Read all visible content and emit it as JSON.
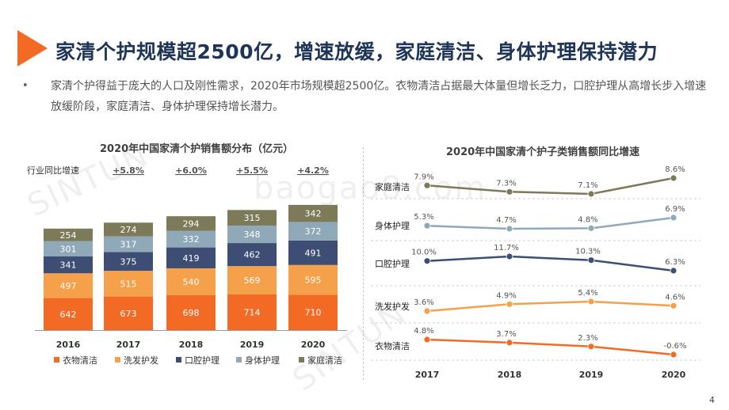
{
  "page": {
    "title": "家清个护规模超2500亿，增速放缓，家庭清洁、身体护理保持潜力",
    "bullet": "•",
    "summary": "家清个护得益于庞大的人口及刚性需求，2020年市场规模超2500亿。衣物清洁占据最大体量但增长乏力，口腔护理从高增长步入增速放缓阶段，家庭清洁、身体护理保持增长潜力。",
    "page_number": "4",
    "watermarks": [
      "SINTUN",
      "baogao8.com",
      "SINTUN"
    ]
  },
  "chart_data": [
    {
      "type": "bar",
      "stacked": true,
      "title": "2020年中国家清个护销售额分布（亿元）",
      "categories": [
        "2016",
        "2017",
        "2018",
        "2019",
        "2020"
      ],
      "growth_row_label": "行业同比增速",
      "growth": [
        "",
        "+5.8%",
        "+6.0%",
        "+5.5%",
        "+4.2%"
      ],
      "series": [
        {
          "name": "衣物清洁",
          "color": "#f26a23",
          "values": [
            642,
            673,
            698,
            714,
            710
          ]
        },
        {
          "name": "洗发护发",
          "color": "#f5a04a",
          "values": [
            497,
            515,
            540,
            569,
            595
          ]
        },
        {
          "name": "口腔护理",
          "color": "#3d4d73",
          "values": [
            341,
            375,
            419,
            462,
            491
          ]
        },
        {
          "name": "身体护理",
          "color": "#8fa9b8",
          "values": [
            301,
            317,
            332,
            348,
            372
          ]
        },
        {
          "name": "家庭清洁",
          "color": "#7c7a58",
          "values": [
            254,
            274,
            294,
            315,
            342
          ]
        }
      ]
    },
    {
      "type": "line",
      "title": "2020年中国家清个护子类销售额同比增速",
      "x": [
        "2017",
        "2018",
        "2019",
        "2020"
      ],
      "series": [
        {
          "name": "家庭清洁",
          "color": "#7c7a58",
          "values": [
            7.9,
            7.3,
            7.1,
            8.6
          ],
          "labels": [
            "7.9%",
            "7.3%",
            "7.1%",
            "8.6%"
          ]
        },
        {
          "name": "身体护理",
          "color": "#8fa9b8",
          "values": [
            5.3,
            4.7,
            4.8,
            6.9
          ],
          "labels": [
            "5.3%",
            "4.7%",
            "4.8%",
            "6.9%"
          ]
        },
        {
          "name": "口腔护理",
          "color": "#3d4d73",
          "values": [
            10.0,
            11.7,
            10.3,
            6.3
          ],
          "labels": [
            "10.0%",
            "11.7%",
            "10.3%",
            "6.3%"
          ]
        },
        {
          "name": "洗发护发",
          "color": "#f5a04a",
          "values": [
            3.6,
            4.9,
            5.4,
            4.6
          ],
          "labels": [
            "3.6%",
            "4.9%",
            "5.4%",
            "4.6%"
          ]
        },
        {
          "name": "衣物清洁",
          "color": "#f26a23",
          "values": [
            4.8,
            3.7,
            2.3,
            -0.6
          ],
          "labels": [
            "4.8%",
            "3.7%",
            "2.3%",
            "-0.6%"
          ]
        }
      ]
    }
  ]
}
